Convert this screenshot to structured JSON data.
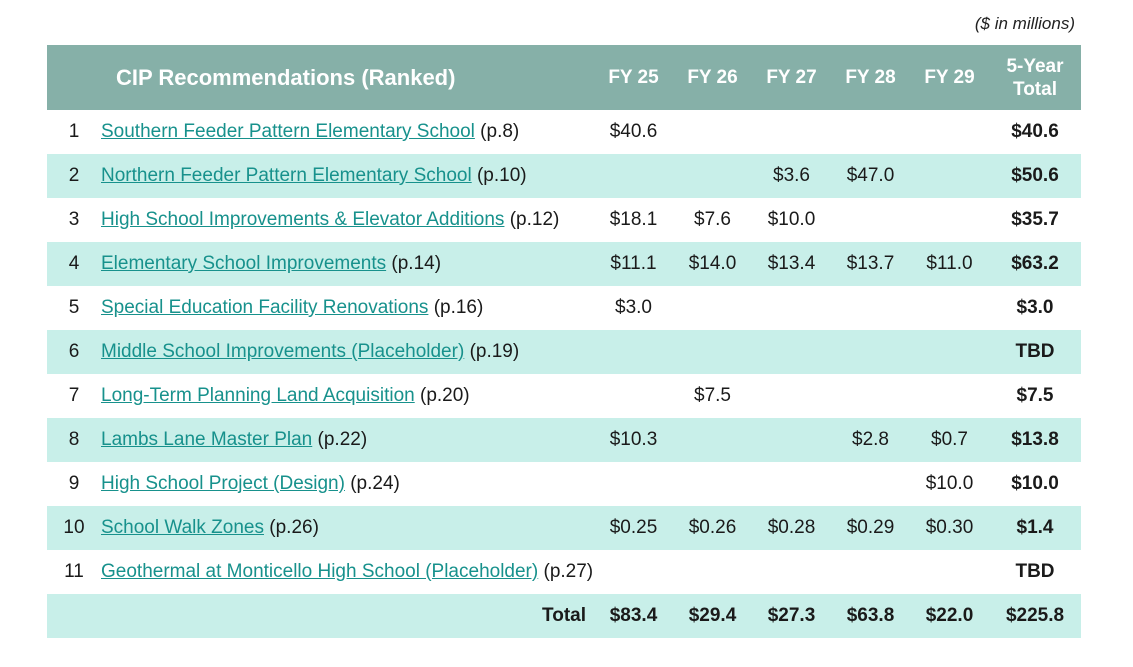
{
  "units_note": "($ in millions)",
  "columns": {
    "title": "CIP Recommendations (Ranked)",
    "fy": [
      "FY 25",
      "FY 26",
      "FY 27",
      "FY 28",
      "FY 29"
    ],
    "total_line1": "5-Year",
    "total_line2": "Total"
  },
  "rows": [
    {
      "rank": "1",
      "name": "Southern Feeder Pattern Elementary School",
      "page": "(p.8)",
      "fy25": "$40.6",
      "fy26": "",
      "fy27": "",
      "fy28": "",
      "fy29": "",
      "total": "$40.6"
    },
    {
      "rank": "2",
      "name": "Northern Feeder Pattern Elementary School",
      "page": "(p.10)",
      "fy25": "",
      "fy26": "",
      "fy27": "$3.6",
      "fy28": "$47.0",
      "fy29": "",
      "total": "$50.6"
    },
    {
      "rank": "3",
      "name": "High School Improvements & Elevator Additions",
      "page": "(p.12)",
      "fy25": "$18.1",
      "fy26": "$7.6",
      "fy27": "$10.0",
      "fy28": "",
      "fy29": "",
      "total": "$35.7"
    },
    {
      "rank": "4",
      "name": "Elementary School Improvements",
      "page": "(p.14)",
      "fy25": "$11.1",
      "fy26": "$14.0",
      "fy27": "$13.4",
      "fy28": "$13.7",
      "fy29": "$11.0",
      "total": "$63.2"
    },
    {
      "rank": "5",
      "name": "Special Education Facility Renovations",
      "page": "(p.16)",
      "fy25": "$3.0",
      "fy26": "",
      "fy27": "",
      "fy28": "",
      "fy29": "",
      "total": "$3.0"
    },
    {
      "rank": "6",
      "name": "Middle School Improvements (Placeholder)",
      "page": "(p.19)",
      "fy25": "",
      "fy26": "",
      "fy27": "",
      "fy28": "",
      "fy29": "",
      "total": "TBD"
    },
    {
      "rank": "7",
      "name": "Long-Term Planning Land Acquisition",
      "page": "(p.20)",
      "fy25": "",
      "fy26": "$7.5",
      "fy27": "",
      "fy28": "",
      "fy29": "",
      "total": "$7.5"
    },
    {
      "rank": "8",
      "name": "Lambs Lane Master Plan",
      "page": "(p.22)",
      "fy25": "$10.3",
      "fy26": "",
      "fy27": "",
      "fy28": "$2.8",
      "fy29": "$0.7",
      "total": "$13.8"
    },
    {
      "rank": "9",
      "name": "High School Project (Design)",
      "page": "(p.24)",
      "fy25": "",
      "fy26": "",
      "fy27": "",
      "fy28": "",
      "fy29": "$10.0",
      "total": "$10.0"
    },
    {
      "rank": "10",
      "name": "School Walk Zones",
      "page": "(p.26)",
      "fy25": "$0.25",
      "fy26": "$0.26",
      "fy27": "$0.28",
      "fy28": "$0.29",
      "fy29": "$0.30",
      "total": "$1.4"
    },
    {
      "rank": "11",
      "name": "Geothermal at Monticello High School (Placeholder)",
      "page": "(p.27)",
      "fy25": "",
      "fy26": "",
      "fy27": "",
      "fy28": "",
      "fy29": "",
      "total": "TBD"
    }
  ],
  "totals": {
    "label": "Total",
    "fy25": "$83.4",
    "fy26": "$29.4",
    "fy27": "$27.3",
    "fy28": "$63.8",
    "fy29": "$22.0",
    "total": "$225.8"
  }
}
